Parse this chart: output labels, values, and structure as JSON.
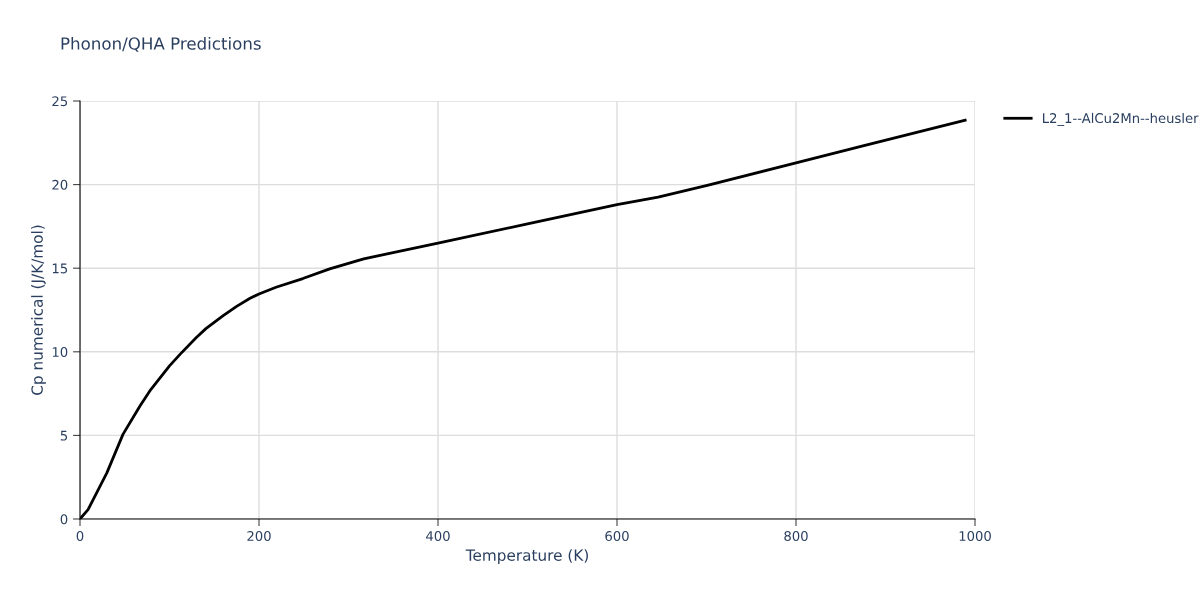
{
  "chart_data": {
    "type": "line",
    "title": "Phonon/QHA Predictions",
    "xlabel": "Temperature (K)",
    "ylabel": "Cp numerical (J/K/mol)",
    "xlim": [
      0,
      1000
    ],
    "xticks": [
      0,
      200,
      400,
      600,
      800,
      1000
    ],
    "ylim": [
      0,
      25
    ],
    "yticks": [
      0,
      5,
      10,
      15,
      20,
      25
    ],
    "grid": true,
    "legend": "top right",
    "line_style": "solid",
    "marker": "none",
    "series": [
      {
        "name": "L2_1--AlCu2Mn--heusler",
        "color": "#000000",
        "x": [
          0,
          9,
          30,
          48,
          67,
          78,
          100,
          112,
          130,
          141,
          160,
          175,
          190,
          200,
          219,
          249,
          279,
          317,
          400,
          500,
          600,
          646,
          702,
          800,
          877,
          989
        ],
        "values": [
          0,
          0.56,
          2.76,
          5.06,
          6.76,
          7.66,
          9.16,
          9.86,
          10.86,
          11.4,
          12.16,
          12.72,
          13.2,
          13.46,
          13.86,
          14.38,
          14.96,
          15.56,
          16.5,
          17.65,
          18.8,
          19.25,
          19.97,
          21.3,
          22.35,
          23.85
        ]
      }
    ]
  }
}
